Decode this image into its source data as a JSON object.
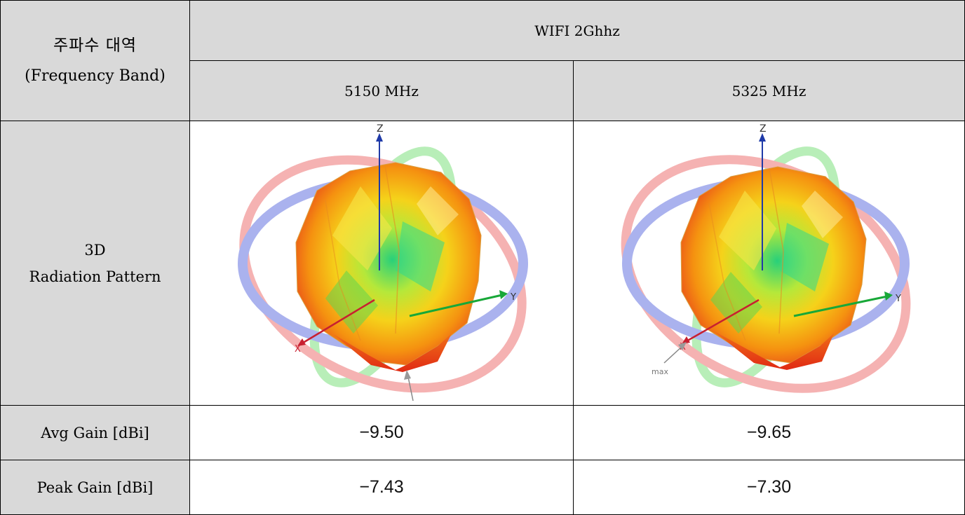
{
  "header": {
    "band_label_ko": "주파수 대역",
    "band_label_en": "(Frequency Band)",
    "band_name": "WIFI 2Ghhz"
  },
  "frequencies": [
    "5150 MHz",
    "5325 MHz"
  ],
  "rows": {
    "pattern": {
      "label_line1": "3D",
      "label_line2": "Radiation Pattern",
      "axis_labels": {
        "z": "Z",
        "y": "Y",
        "x": "X"
      },
      "marker_label_2": "max",
      "ring_colors": {
        "azimuth": "#aab2ee",
        "elevation_x": "#f5a8a8",
        "elevation_y": "#b8eeb8"
      }
    },
    "avg_gain": {
      "label": "Avg Gain [dBi]",
      "values": [
        "−9.50",
        "−9.65"
      ]
    },
    "peak_gain": {
      "label": "Peak Gain [dBi]",
      "values": [
        "−7.43",
        "−7.30"
      ]
    }
  }
}
